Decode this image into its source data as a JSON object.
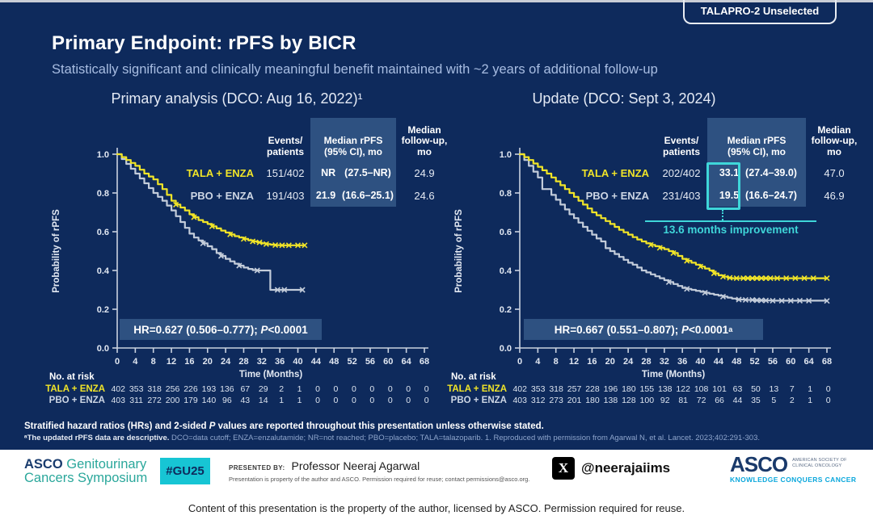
{
  "colors": {
    "navy": "#0e2a5c",
    "hl": "#2e5181",
    "yellow": "#f0e428",
    "gray": "#c3ccda",
    "teal": "#3fd6d9",
    "cyan": "#17c5d4"
  },
  "badge": "TALAPRO-2 Unselected",
  "header": {
    "title": "Primary Endpoint: rPFS by BICR",
    "subtitle": "Statistically significant and clinically meaningful benefit maintained with ~2 years of additional follow-up"
  },
  "panels": [
    {
      "title": "Primary analysis (DCO: Aug 16, 2022)¹",
      "stats": {
        "col_headers": [
          "Events/\npatients",
          "Median rPFS\n(95% CI), mo",
          "Median\nfollow-up,\nmo"
        ],
        "rows": [
          {
            "label": "TALA + ENZA",
            "events": "151/402",
            "median": "NR",
            "ci": "(27.5–NR)",
            "followup": "24.9"
          },
          {
            "label": "PBO + ENZA",
            "events": "191/403",
            "median": "21.9",
            "ci": "(16.6–25.1)",
            "followup": "24.6"
          }
        ]
      },
      "hr": {
        "text": "HR=0.627 (0.506–0.777); ",
        "p": "P",
        "pval": "<0.0001",
        "pval_sup": ""
      },
      "risk_title": "No. at risk"
    },
    {
      "title": "Update (DCO: Sept 3, 2024)",
      "stats": {
        "col_headers": [
          "Events/\npatients",
          "Median rPFS\n(95% CI), mo",
          "Median\nfollow-up,\nmo"
        ],
        "rows": [
          {
            "label": "TALA + ENZA",
            "events": "202/402",
            "median": "33.1",
            "ci": "(27.4–39.0)",
            "followup": "47.0"
          },
          {
            "label": "PBO + ENZA",
            "events": "231/403",
            "median": "19.5",
            "ci": "(16.6–24.7)",
            "followup": "46.9"
          }
        ]
      },
      "hr": {
        "text": "HR=0.667 (0.551–0.807); ",
        "p": "P",
        "pval": "<0.0001",
        "pval_sup": "a"
      },
      "improvement_label": "13.6 months improvement",
      "risk_title": "No. at risk"
    }
  ],
  "chart_data": [
    {
      "type": "line",
      "title": "Primary analysis (DCO: Aug 16, 2022)¹",
      "xlabel": "Time (Months)",
      "ylabel": "Probability of rPFS",
      "xlim": [
        0,
        68
      ],
      "ylim": [
        0,
        1
      ],
      "xticks": [
        0,
        4,
        8,
        12,
        16,
        20,
        24,
        28,
        32,
        36,
        40,
        44,
        48,
        52,
        56,
        60,
        64,
        68
      ],
      "yticks": [
        0.0,
        0.2,
        0.4,
        0.6,
        0.8,
        1.0
      ],
      "grid": false,
      "annotation": "HR=0.627 (0.506–0.777); P<0.0001",
      "series": [
        {
          "name": "TALA + ENZA",
          "color": "#f0e428",
          "median": "NR (27.5–NR)",
          "steps": [
            [
              0,
              1.0
            ],
            [
              1,
              0.985
            ],
            [
              2,
              0.97
            ],
            [
              3,
              0.955
            ],
            [
              4,
              0.94
            ],
            [
              5,
              0.92
            ],
            [
              6,
              0.9
            ],
            [
              7,
              0.885
            ],
            [
              8,
              0.87
            ],
            [
              9,
              0.845
            ],
            [
              10,
              0.82
            ],
            [
              11,
              0.79
            ],
            [
              12,
              0.76
            ],
            [
              13,
              0.74
            ],
            [
              14,
              0.725
            ],
            [
              15,
              0.71
            ],
            [
              16,
              0.69
            ],
            [
              17,
              0.675
            ],
            [
              18,
              0.66
            ],
            [
              19,
              0.65
            ],
            [
              20,
              0.64
            ],
            [
              21,
              0.628
            ],
            [
              22,
              0.617
            ],
            [
              23,
              0.606
            ],
            [
              24,
              0.596
            ],
            [
              25,
              0.586
            ],
            [
              26,
              0.577
            ],
            [
              27,
              0.57
            ],
            [
              28,
              0.563
            ],
            [
              29,
              0.556
            ],
            [
              30,
              0.55
            ],
            [
              31,
              0.545
            ],
            [
              32,
              0.54
            ],
            [
              33,
              0.536
            ],
            [
              34,
              0.533
            ],
            [
              35,
              0.531
            ],
            [
              36,
              0.53
            ],
            [
              41.5,
              0.53
            ]
          ],
          "censors": [
            13,
            17,
            21,
            25,
            28,
            30,
            31.5,
            33,
            35,
            36.5,
            38,
            40,
            41.5
          ]
        },
        {
          "name": "PBO + ENZA",
          "color": "#c3ccda",
          "median": "21.9 (16.6–25.1)",
          "steps": [
            [
              0,
              1.0
            ],
            [
              1,
              0.975
            ],
            [
              2,
              0.95
            ],
            [
              3,
              0.925
            ],
            [
              4,
              0.9
            ],
            [
              5,
              0.875
            ],
            [
              6,
              0.85
            ],
            [
              7,
              0.825
            ],
            [
              8,
              0.8
            ],
            [
              9,
              0.78
            ],
            [
              10,
              0.76
            ],
            [
              11,
              0.735
            ],
            [
              12,
              0.71
            ],
            [
              13,
              0.68
            ],
            [
              14,
              0.65
            ],
            [
              15,
              0.62
            ],
            [
              16,
              0.59
            ],
            [
              17,
              0.57
            ],
            [
              18,
              0.555
            ],
            [
              19,
              0.54
            ],
            [
              20,
              0.525
            ],
            [
              21,
              0.51
            ],
            [
              22,
              0.49
            ],
            [
              23,
              0.475
            ],
            [
              24,
              0.46
            ],
            [
              25,
              0.447
            ],
            [
              26,
              0.435
            ],
            [
              27,
              0.425
            ],
            [
              28,
              0.415
            ],
            [
              29,
              0.408
            ],
            [
              30,
              0.402
            ],
            [
              31,
              0.4
            ],
            [
              33.7,
              0.4
            ],
            [
              33.9,
              0.3
            ],
            [
              41,
              0.3
            ]
          ],
          "censors": [
            19,
            23,
            27,
            31,
            35.5,
            37,
            41
          ]
        }
      ],
      "at_risk": {
        "rows": [
          {
            "label": "TALA + ENZA",
            "color": "#f0e428",
            "values": [
              402,
              353,
              318,
              256,
              226,
              193,
              136,
              67,
              29,
              2,
              1,
              0,
              0,
              0,
              0,
              0,
              0,
              0
            ]
          },
          {
            "label": "PBO + ENZA",
            "color": "#cdd6e4",
            "values": [
              403,
              311,
              272,
              200,
              179,
              140,
              96,
              43,
              14,
              1,
              1,
              0,
              0,
              0,
              0,
              0,
              0,
              0
            ]
          }
        ]
      }
    },
    {
      "type": "line",
      "title": "Update (DCO: Sept 3, 2024)",
      "xlabel": "Time (Months)",
      "ylabel": "Probability of rPFS",
      "xlim": [
        0,
        68
      ],
      "ylim": [
        0,
        1
      ],
      "xticks": [
        0,
        4,
        8,
        12,
        16,
        20,
        24,
        28,
        32,
        36,
        40,
        44,
        48,
        52,
        56,
        60,
        64,
        68
      ],
      "yticks": [
        0.0,
        0.2,
        0.4,
        0.6,
        0.8,
        1.0
      ],
      "grid": false,
      "annotation": "HR=0.667 (0.551–0.807); P<0.0001a",
      "improvement": "13.6 months improvement",
      "series": [
        {
          "name": "TALA + ENZA",
          "color": "#f0e428",
          "median": "33.1 (27.4–39.0)",
          "steps": [
            [
              0,
              1.0
            ],
            [
              1,
              0.985
            ],
            [
              2,
              0.97
            ],
            [
              3,
              0.952
            ],
            [
              4,
              0.935
            ],
            [
              5,
              0.917
            ],
            [
              6,
              0.9
            ],
            [
              7,
              0.88
            ],
            [
              8,
              0.86
            ],
            [
              9,
              0.84
            ],
            [
              10,
              0.82
            ],
            [
              11,
              0.8
            ],
            [
              12,
              0.78
            ],
            [
              13,
              0.76
            ],
            [
              14,
              0.74
            ],
            [
              15,
              0.72
            ],
            [
              16,
              0.7
            ],
            [
              17,
              0.685
            ],
            [
              18,
              0.67
            ],
            [
              19,
              0.655
            ],
            [
              20,
              0.64
            ],
            [
              21,
              0.625
            ],
            [
              22,
              0.61
            ],
            [
              23,
              0.597
            ],
            [
              24,
              0.585
            ],
            [
              25,
              0.572
            ],
            [
              26,
              0.56
            ],
            [
              27,
              0.55
            ],
            [
              28,
              0.54
            ],
            [
              29,
              0.532
            ],
            [
              30,
              0.525
            ],
            [
              31,
              0.517
            ],
            [
              32,
              0.51
            ],
            [
              33,
              0.5
            ],
            [
              34,
              0.49
            ],
            [
              35,
              0.475
            ],
            [
              36,
              0.46
            ],
            [
              37,
              0.45
            ],
            [
              38,
              0.44
            ],
            [
              39,
              0.43
            ],
            [
              40,
              0.42
            ],
            [
              41,
              0.41
            ],
            [
              42,
              0.4
            ],
            [
              43,
              0.385
            ],
            [
              44,
              0.375
            ],
            [
              45,
              0.368
            ],
            [
              46,
              0.362
            ],
            [
              47,
              0.36
            ],
            [
              68,
              0.36
            ]
          ],
          "censors": [
            29,
            31,
            34,
            37,
            40,
            43,
            45,
            46.5,
            48,
            49.5,
            50.5,
            51.5,
            52.5,
            53.5,
            54.5,
            55.5,
            57,
            59,
            61,
            63,
            65,
            68
          ]
        },
        {
          "name": "PBO + ENZA",
          "color": "#c3ccda",
          "median": "19.5 (16.6–24.7)",
          "steps": [
            [
              0,
              1.0
            ],
            [
              1,
              0.97
            ],
            [
              2,
              0.94
            ],
            [
              3,
              0.91
            ],
            [
              4,
              0.88
            ],
            [
              5,
              0.82
            ],
            [
              6,
              0.82
            ],
            [
              7,
              0.79
            ],
            [
              8,
              0.765
            ],
            [
              9,
              0.74
            ],
            [
              10,
              0.715
            ],
            [
              11,
              0.69
            ],
            [
              12,
              0.67
            ],
            [
              13,
              0.647
            ],
            [
              14,
              0.625
            ],
            [
              15,
              0.605
            ],
            [
              16,
              0.585
            ],
            [
              17,
              0.565
            ],
            [
              18,
              0.55
            ],
            [
              19,
              0.515
            ],
            [
              20,
              0.5
            ],
            [
              21,
              0.485
            ],
            [
              22,
              0.47
            ],
            [
              23,
              0.455
            ],
            [
              24,
              0.44
            ],
            [
              25,
              0.43
            ],
            [
              26,
              0.415
            ],
            [
              27,
              0.4
            ],
            [
              28,
              0.39
            ],
            [
              29,
              0.38
            ],
            [
              30,
              0.37
            ],
            [
              31,
              0.36
            ],
            [
              32,
              0.35
            ],
            [
              33,
              0.34
            ],
            [
              34,
              0.33
            ],
            [
              35,
              0.32
            ],
            [
              36,
              0.31
            ],
            [
              37,
              0.305
            ],
            [
              38,
              0.3
            ],
            [
              39,
              0.295
            ],
            [
              40,
              0.29
            ],
            [
              41,
              0.285
            ],
            [
              42,
              0.28
            ],
            [
              43,
              0.275
            ],
            [
              44,
              0.27
            ],
            [
              45,
              0.265
            ],
            [
              46,
              0.26
            ],
            [
              47,
              0.255
            ],
            [
              48,
              0.25
            ],
            [
              50,
              0.248
            ],
            [
              52,
              0.246
            ],
            [
              54,
              0.245
            ],
            [
              56,
              0.244
            ],
            [
              68,
              0.243
            ]
          ],
          "censors": [
            33,
            37,
            41,
            45,
            48.5,
            50,
            51.5,
            52.5,
            53.5,
            54.5,
            56,
            58,
            60,
            62,
            64,
            68
          ]
        }
      ],
      "at_risk": {
        "rows": [
          {
            "label": "TALA + ENZA",
            "color": "#f0e428",
            "values": [
              402,
              353,
              318,
              257,
              228,
              196,
              180,
              155,
              138,
              122,
              108,
              101,
              63,
              50,
              13,
              7,
              1,
              0
            ]
          },
          {
            "label": "PBO + ENZA",
            "color": "#cdd6e4",
            "values": [
              403,
              312,
              273,
              201,
              180,
              138,
              128,
              100,
              92,
              81,
              72,
              66,
              44,
              35,
              5,
              2,
              1,
              0
            ]
          }
        ]
      }
    }
  ],
  "footer": {
    "line1a": "Stratified hazard ratios (HRs) and 2-sided ",
    "line1p": "P",
    "line1b": " values are reported throughout this presentation unless otherwise stated.",
    "line2_bold": "ᵃThe updated rPFS data are descriptive. ",
    "line2_rest": "DCO=data cutoff; ENZA=enzalutamide; NR=not reached; PBO=placebo; TALA=talazoparib. 1. Reproduced with permission from Agarwal N, et al. Lancet. 2023;402:291-303."
  },
  "bottom_bar": {
    "gu_logo": {
      "asco": "ASCO",
      "line1_rest": " Genitourinary",
      "line2": "Cancers Symposium"
    },
    "hashtag": "#GU25",
    "presented_by_label": "PRESENTED BY:",
    "presenter": "Professor Neeraj Agarwal",
    "disclaimer": "Presentation is property of the author and ASCO. Permission required for reuse; contact permissions@asco.org.",
    "x_glyph": "X",
    "twitter": "@neerajaiims",
    "asco_logo": {
      "name": "ASCO",
      "sub1": "AMERICAN SOCIETY OF",
      "sub2": "CLINICAL ONCOLOGY",
      "tagline": "KNOWLEDGE CONQUERS CANCER"
    }
  },
  "caption": "Content of this presentation is the property of the author, licensed by ASCO. Permission required for reuse."
}
